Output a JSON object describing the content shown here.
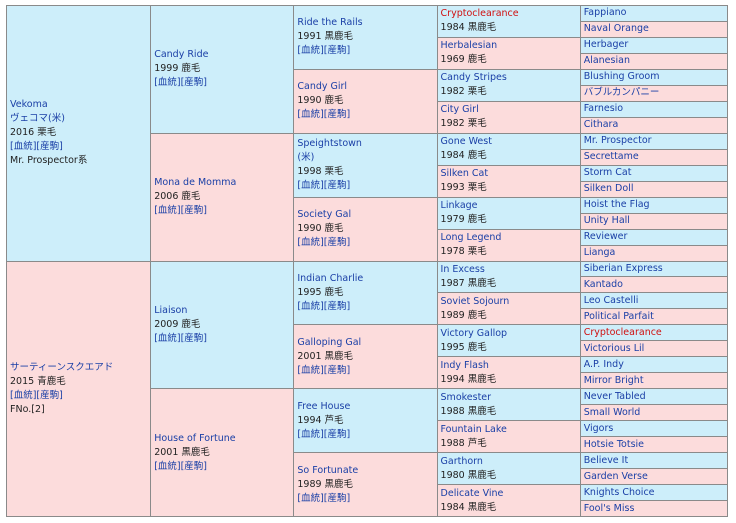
{
  "pedigree": {
    "sire": {
      "name_en": "Vekoma",
      "name_ja": "ヴェコマ(米)",
      "info": "2016 栗毛",
      "link": "[血統][産駒]",
      "line": "Mr. Prospector系",
      "ss": {
        "name": "Candy Ride",
        "info": "1999 鹿毛",
        "link": "[血統][産駒]",
        "sss": {
          "name": "Ride the Rails",
          "info": "1991 黒鹿毛",
          "link": "[血統][産駒]",
          "m1": {
            "name": "Cryptoclearance",
            "info": "1984 黒鹿毛",
            "s": "Fappiano",
            "d": "Naval Orange"
          },
          "f1": {
            "name": "Herbalesian",
            "info": "1969 鹿毛",
            "s": "Herbager",
            "d": "Alanesian"
          }
        },
        "ssd": {
          "name": "Candy Girl",
          "info": "1990 鹿毛",
          "link": "[血統][産駒]",
          "m1": {
            "name": "Candy Stripes",
            "info": "1982 栗毛",
            "s": "Blushing Groom",
            "d": "バブルカンパニー"
          },
          "f1": {
            "name": "City Girl",
            "info": "1982 栗毛",
            "s": "Farnesio",
            "d": "Cithara"
          }
        }
      },
      "sd": {
        "name": "Mona de Momma",
        "info": "2006 鹿毛",
        "link": "[血統][産駒]",
        "sds": {
          "name": "Speightstown",
          "name2": "(米)",
          "info": "1998 栗毛",
          "link": "[血統][産駒]",
          "m1": {
            "name": "Gone West",
            "info": "1984 鹿毛",
            "s": "Mr. Prospector",
            "d": "Secrettame"
          },
          "f1": {
            "name": "Silken Cat",
            "info": "1993 栗毛",
            "s": "Storm Cat",
            "d": "Silken Doll"
          }
        },
        "sdd": {
          "name": "Society Gal",
          "info": "1990 鹿毛",
          "link": "[血統][産駒]",
          "m1": {
            "name": "Linkage",
            "info": "1979 鹿毛",
            "s": "Hoist the Flag",
            "d": "Unity Hall"
          },
          "f1": {
            "name": "Long Legend",
            "info": "1978 栗毛",
            "s": "Reviewer",
            "d": "Lianga"
          }
        }
      }
    },
    "dam": {
      "name": "サーティーンスクエアド",
      "info": "2015 青鹿毛",
      "link": "[血統][産駒]",
      "family": "FNo.[2]",
      "ds": {
        "name": "Liaison",
        "info": "2009 鹿毛",
        "link": "[血統][産駒]",
        "dss": {
          "name": "Indian Charlie",
          "info": "1995 鹿毛",
          "link": "[血統][産駒]",
          "m1": {
            "name": "In Excess",
            "info": "1987 黒鹿毛",
            "s": "Siberian Express",
            "d": "Kantado"
          },
          "f1": {
            "name": "Soviet Sojourn",
            "info": "1989 鹿毛",
            "s": "Leo Castelli",
            "d": "Political Parfait"
          }
        },
        "dsd": {
          "name": "Galloping Gal",
          "info": "2001 黒鹿毛",
          "link": "[血統][産駒]",
          "m1": {
            "name": "Victory Gallop",
            "info": "1995 鹿毛",
            "s": "Cryptoclearance",
            "d": "Victorious Lil"
          },
          "f1": {
            "name": "Indy Flash",
            "info": "1994 黒鹿毛",
            "s": "A.P. Indy",
            "d": "Mirror Bright"
          }
        }
      },
      "dd": {
        "name": "House of Fortune",
        "info": "2001 黒鹿毛",
        "link": "[血統][産駒]",
        "dds": {
          "name": "Free House",
          "info": "1994 芦毛",
          "link": "[血統][産駒]",
          "m1": {
            "name": "Smokester",
            "info": "1988 黒鹿毛",
            "s": "Never Tabled",
            "d": "Small World"
          },
          "f1": {
            "name": "Fountain Lake",
            "info": "1988 芦毛",
            "s": "Vigors",
            "d": "Hotsie Totsie"
          }
        },
        "ddd": {
          "name": "So Fortunate",
          "info": "1989 黒鹿毛",
          "link": "[血統][産駒]",
          "m1": {
            "name": "Garthorn",
            "info": "1980 黒鹿毛",
            "s": "Believe It",
            "d": "Garden Verse"
          },
          "f1": {
            "name": "Delicate Vine",
            "info": "1984 黒鹿毛",
            "s": "Knights Choice",
            "d": "Fool's Miss"
          }
        }
      }
    }
  },
  "colors": {
    "male_bg": "#cdeefa",
    "female_bg": "#fcdcdc",
    "link": "#1a3fa6",
    "highlight": "#d01010"
  }
}
